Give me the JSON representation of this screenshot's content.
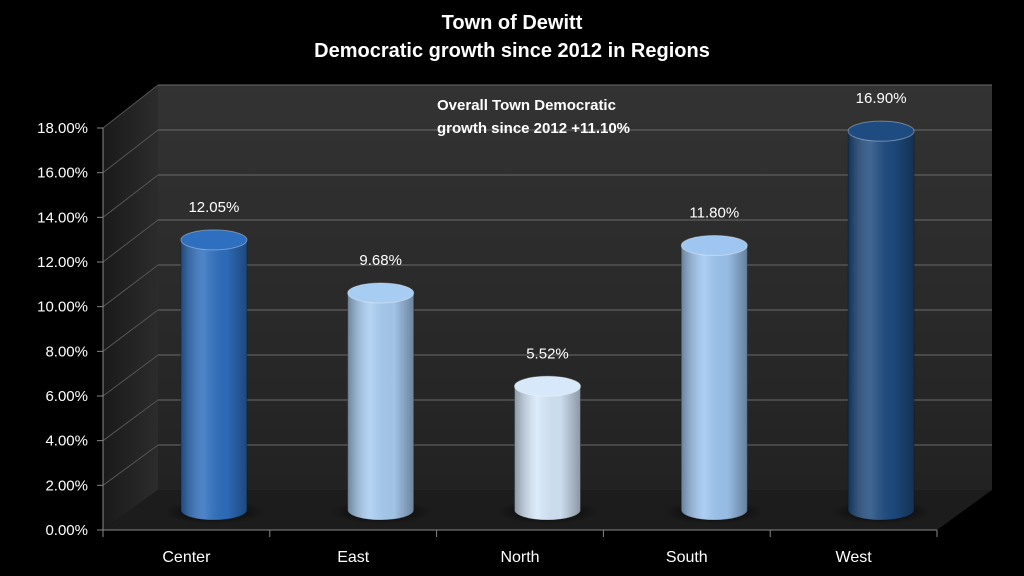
{
  "chart_data": {
    "type": "bar",
    "title": "Town of Dewitt",
    "subtitle": "Democratic growth since 2012 in Regions",
    "categories": [
      "Center",
      "East",
      "North",
      "South",
      "West"
    ],
    "values": [
      12.05,
      9.68,
      5.52,
      11.8,
      16.9
    ],
    "data_labels": [
      "12.05%",
      "9.68%",
      "5.52%",
      "11.80%",
      "16.90%"
    ],
    "ylim": [
      0,
      18
    ],
    "yticks": [
      0,
      2,
      4,
      6,
      8,
      10,
      12,
      14,
      16,
      18
    ],
    "ytick_labels": [
      "0.00%",
      "2.00%",
      "4.00%",
      "6.00%",
      "8.00%",
      "10.00%",
      "12.00%",
      "14.00%",
      "16.00%",
      "18.00%"
    ],
    "annotation": [
      "Overall Town Democratic",
      "growth since 2012 +11.10%"
    ],
    "grid": true,
    "colors": {
      "Center": "#2e6fbf",
      "East": "#a8cdf2",
      "North": "#d6e8fa",
      "South": "#9ec6f0",
      "West": "#1e4b80"
    }
  }
}
